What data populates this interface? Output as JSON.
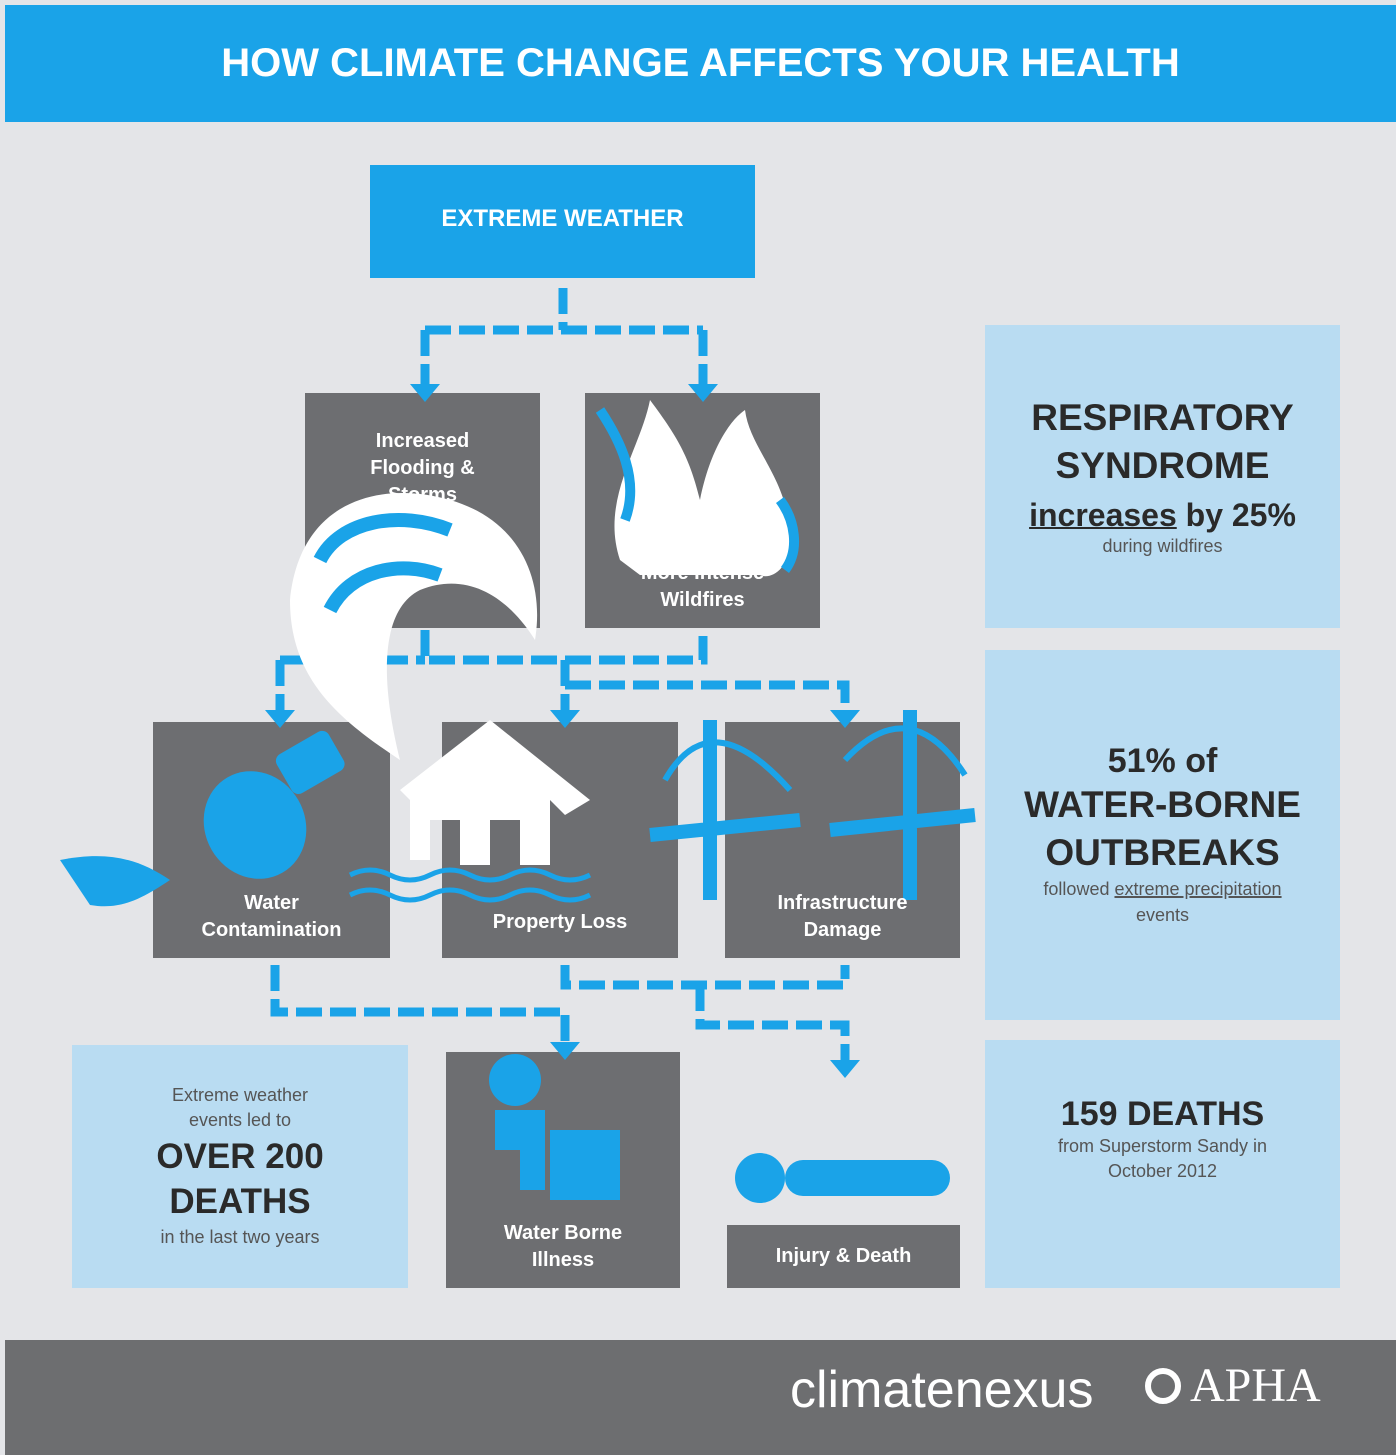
{
  "header": {
    "title": "HOW CLIMATE CHANGE AFFECTS YOUR HEALTH"
  },
  "nodes": [
    {
      "label": "EXTREME WEATHER"
    },
    {
      "label": "Increased Flooding & Storms"
    },
    {
      "label": "More Intense Wildfires"
    },
    {
      "label": "Water Contamination"
    },
    {
      "label": "Property Loss"
    },
    {
      "label": "Infrastructure Damage"
    },
    {
      "label": "Water Borne Illness"
    },
    {
      "label": "Injury & Death"
    }
  ],
  "stats": {
    "respiratory": {
      "headline": "RESPIRATORY SYNDROME",
      "emphasis": "increases",
      "change": "by 25%",
      "note": "during wildfires"
    },
    "waterborne": {
      "lead": "51% of",
      "headline": "WATER-BORNE OUTBREAKS",
      "note_start": "followed",
      "note_link": "extreme precipitation",
      "note_end": "events"
    },
    "extreme_deaths": {
      "lead": "Extreme weather events led to",
      "headline": "OVER 200 DEATHS",
      "note": "in the last two years"
    },
    "sandy": {
      "headline": "159 DEATHS",
      "note": "from Superstorm Sandy in October 2012"
    }
  },
  "footer": {
    "logo_left": "climatenexus",
    "logo_right": "APHA"
  }
}
